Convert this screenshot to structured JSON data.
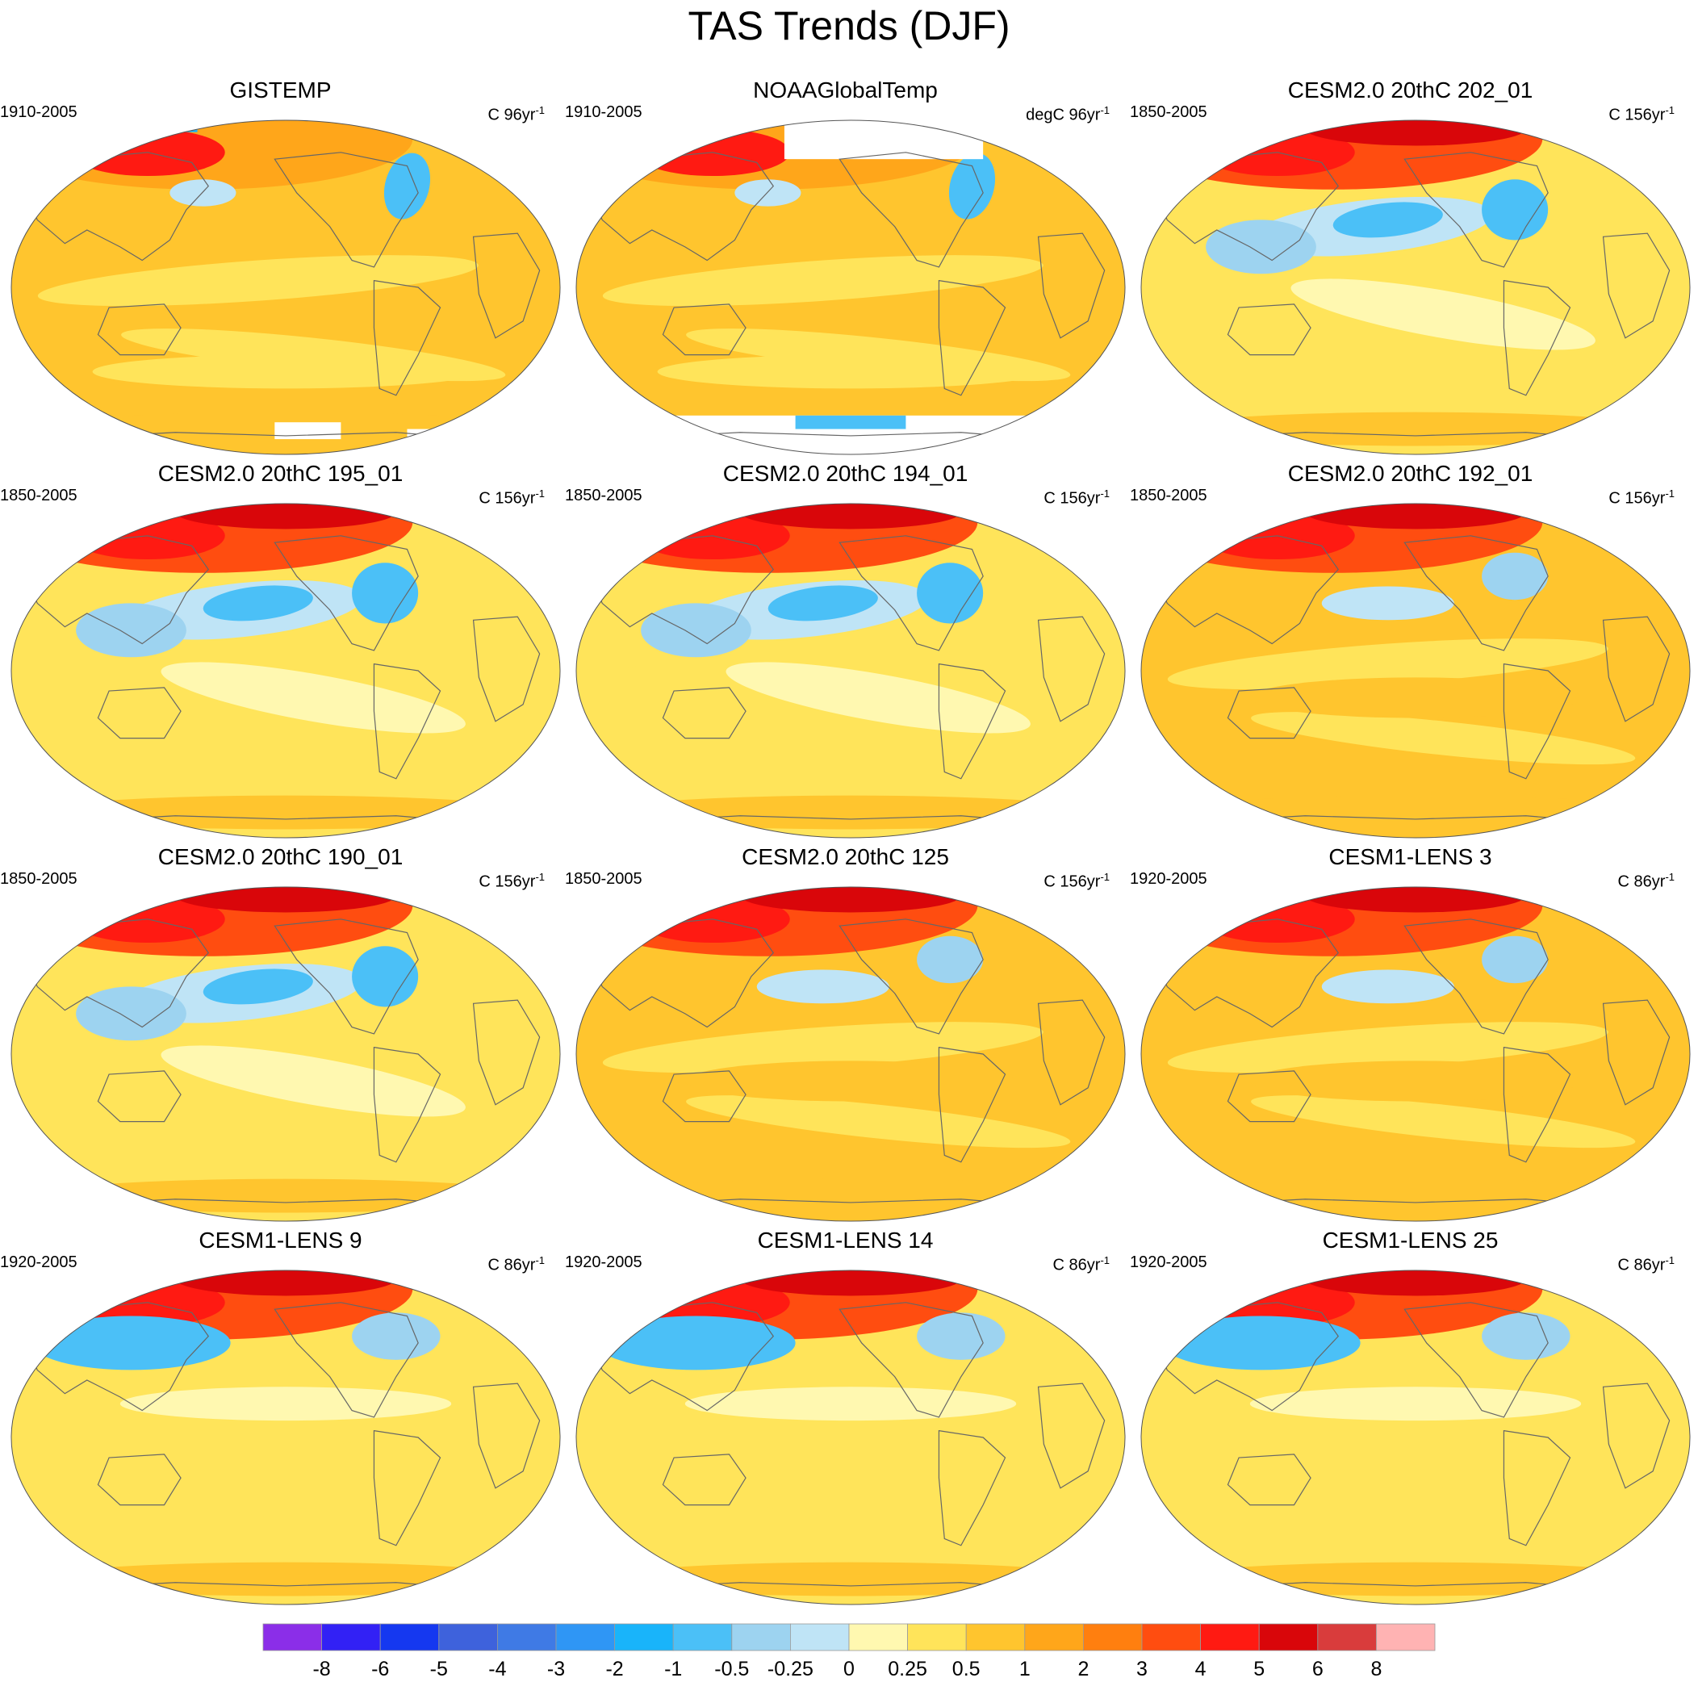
{
  "title": "TAS Trends (DJF)",
  "panels": [
    {
      "title": "GISTEMP",
      "period": "1910-2005",
      "units": "C 96yr",
      "units_sup": "-1",
      "style": "obs_gis"
    },
    {
      "title": "NOAAGlobalTemp",
      "period": "1910-2005",
      "units": "degC 96yr",
      "units_sup": "-1",
      "style": "obs_noaa"
    },
    {
      "title": "CESM2.0 20thC 202_01",
      "period": "1850-2005",
      "units": "C 156yr",
      "units_sup": "-1",
      "style": "model_cool_pac"
    },
    {
      "title": "CESM2.0 20thC 195_01",
      "period": "1850-2005",
      "units": "C 156yr",
      "units_sup": "-1",
      "style": "model_cool"
    },
    {
      "title": "CESM2.0 20thC 194_01",
      "period": "1850-2005",
      "units": "C 156yr",
      "units_sup": "-1",
      "style": "model_cool"
    },
    {
      "title": "CESM2.0 20thC 192_01",
      "period": "1850-2005",
      "units": "C 156yr",
      "units_sup": "-1",
      "style": "model_warm"
    },
    {
      "title": "CESM2.0 20thC 190_01",
      "period": "1850-2005",
      "units": "C 156yr",
      "units_sup": "-1",
      "style": "model_cool"
    },
    {
      "title": "CESM2.0 20thC 125",
      "period": "1850-2005",
      "units": "C 156yr",
      "units_sup": "-1",
      "style": "model_warm"
    },
    {
      "title": "CESM1-LENS 3",
      "period": "1920-2005",
      "units": "C 86yr",
      "units_sup": "-1",
      "style": "model_warm"
    },
    {
      "title": "CESM1-LENS 9",
      "period": "1920-2005",
      "units": "C 86yr",
      "units_sup": "-1",
      "style": "model_mixed"
    },
    {
      "title": "CESM1-LENS 14",
      "period": "1920-2005",
      "units": "C 86yr",
      "units_sup": "-1",
      "style": "model_mixed"
    },
    {
      "title": "CESM1-LENS 25",
      "period": "1920-2005",
      "units": "C 86yr",
      "units_sup": "-1",
      "style": "model_mixed"
    }
  ],
  "colorbar": {
    "colors": [
      "#8b2ee8",
      "#3221f5",
      "#1538f0",
      "#3e62dc",
      "#3f7ae5",
      "#2f96f5",
      "#19b4fa",
      "#4bc0f7",
      "#9dd3f0",
      "#bfe4f6",
      "#fff8b0",
      "#ffe45a",
      "#ffc52e",
      "#ffa61a",
      "#ff7f0f",
      "#ff4d10",
      "#ff1a12",
      "#d9060a",
      "#d93c3c",
      "#ffb3b3"
    ],
    "labels": [
      "-8",
      "-6",
      "-5",
      "-4",
      "-3",
      "-2",
      "-1",
      "-0.5",
      "-0.25",
      "0",
      "0.25",
      "0.5",
      "1",
      "2",
      "3",
      "4",
      "5",
      "6",
      "8"
    ]
  }
}
